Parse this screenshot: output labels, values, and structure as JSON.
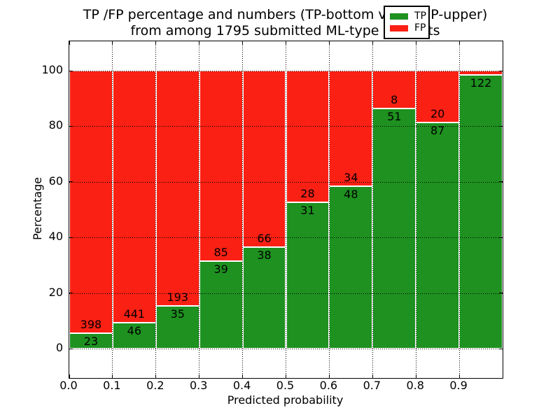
{
  "chart_data": {
    "type": "bar",
    "stacked": true,
    "normalized": "percent_of_bin_total",
    "title": "TP /FP percentage and numbers (TP-bottom value, FP-upper)",
    "subtitle": "from among 1795 submitted ML-type contacts",
    "xlabel": "Predicted probability",
    "ylabel": "Percentage",
    "total_contacts": 1795,
    "bin_width": 0.1,
    "bin_starts": [
      0.0,
      0.1,
      0.2,
      0.3,
      0.4,
      0.5,
      0.6,
      0.7,
      0.8,
      0.9
    ],
    "series": [
      {
        "name": "TP",
        "color": "#1E9120",
        "counts": [
          23,
          46,
          35,
          39,
          38,
          31,
          48,
          51,
          87,
          122
        ],
        "labels_shown": [
          true,
          true,
          true,
          true,
          true,
          true,
          true,
          true,
          true,
          true
        ]
      },
      {
        "name": "FP",
        "color": "#FA2014",
        "counts": [
          398,
          441,
          193,
          85,
          66,
          28,
          34,
          8,
          20,
          2
        ],
        "labels_shown": [
          true,
          true,
          true,
          true,
          true,
          true,
          true,
          true,
          true,
          false
        ]
      }
    ],
    "bar_edge_color": "#FFFFFF",
    "xlim": [
      0.0,
      1.0
    ],
    "ylim": [
      -10.6,
      110.6
    ],
    "xticks": [
      0.0,
      0.1,
      0.2,
      0.3,
      0.4,
      0.5,
      0.6,
      0.7,
      0.8,
      0.9
    ],
    "xtick_labels": [
      "0.0",
      "0.1",
      "0.2",
      "0.3",
      "0.4",
      "0.5",
      "0.6",
      "0.7",
      "0.8",
      "0.9"
    ],
    "yticks": [
      0,
      20,
      40,
      60,
      80,
      100
    ],
    "grid": {
      "visible": true,
      "style": "dotted",
      "color": "#000000"
    },
    "legend": {
      "position": "upper right",
      "entries": [
        {
          "label": "TP",
          "color": "#1E9120"
        },
        {
          "label": "FP",
          "color": "#FA2014"
        }
      ]
    }
  }
}
